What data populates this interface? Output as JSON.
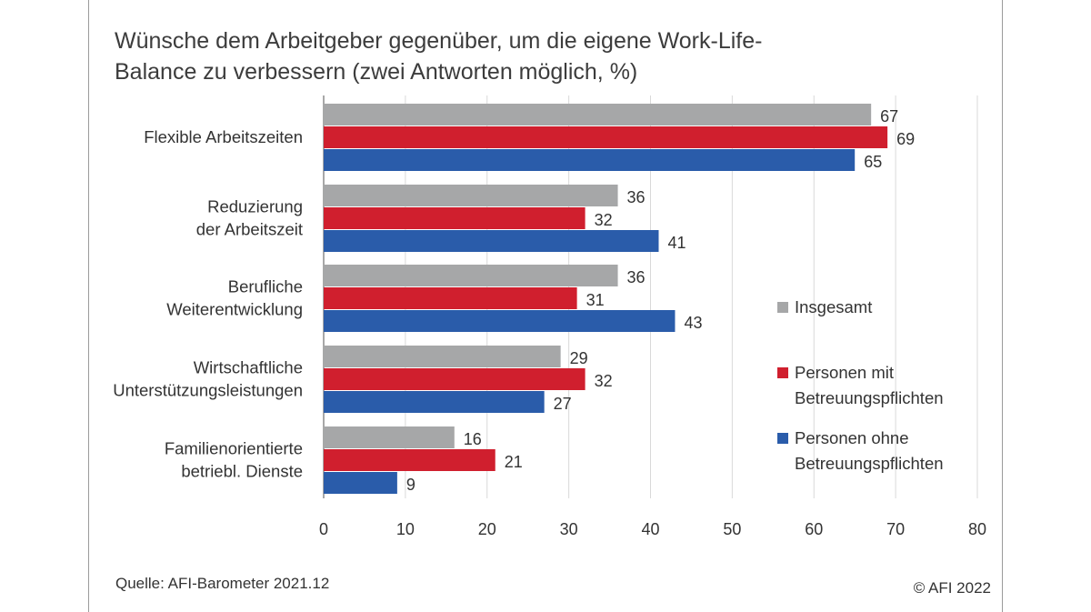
{
  "title_line1": "Wünsche dem Arbeitgeber gegenüber, um die eigene Work-Life-",
  "title_line2": "Balance zu verbessern (zwei Antworten möglich, %)",
  "source": "Quelle: AFI-Barometer 2021.12",
  "copyright": "© AFI 2022",
  "chart_data": {
    "type": "bar",
    "orientation": "horizontal",
    "title": "Wünsche dem Arbeitgeber gegenüber, um die eigene Work-Life-Balance zu verbessern (zwei Antworten möglich, %)",
    "categories": [
      [
        "Flexible Arbeitszeiten"
      ],
      [
        "Reduzierung",
        "der Arbeitszeit"
      ],
      [
        "Berufliche",
        "Weiterentwicklung"
      ],
      [
        "Wirtschaftliche",
        "Unterstützungsleistungen"
      ],
      [
        "Familienorientierte",
        "betriebl. Dienste"
      ]
    ],
    "series": [
      {
        "name": [
          "Insgesamt"
        ],
        "color": "#a6a7a8",
        "values": [
          67,
          36,
          36,
          29,
          16
        ]
      },
      {
        "name": [
          "Personen mit",
          "Betreuungspflichten"
        ],
        "color": "#d01f2e",
        "values": [
          69,
          32,
          31,
          32,
          21
        ]
      },
      {
        "name": [
          "Personen ohne",
          "Betreuungspflichten"
        ],
        "color": "#2a5caa",
        "values": [
          65,
          41,
          43,
          27,
          9
        ]
      }
    ],
    "xlim": [
      0,
      80
    ],
    "xticks": [
      "0",
      "10",
      "20",
      "30",
      "40",
      "50",
      "60",
      "70",
      "80"
    ],
    "grid": true,
    "legend": "right"
  }
}
